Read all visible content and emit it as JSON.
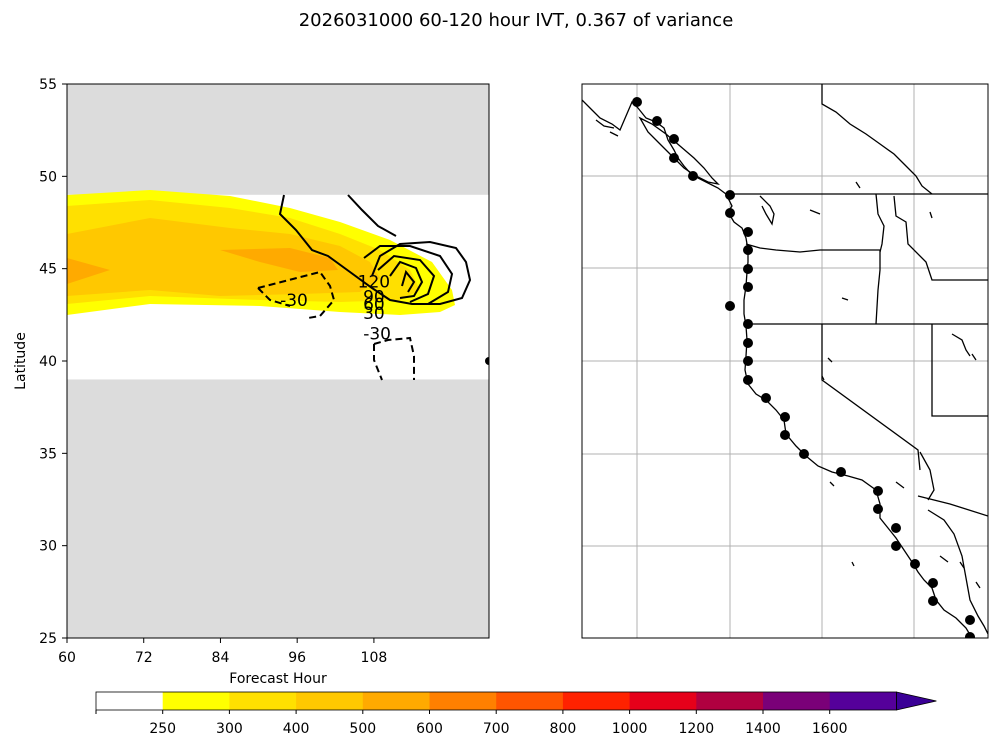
{
  "title": "2026031000 60-120 hour IVT, 0.367 of variance",
  "chart_data": [
    {
      "type": "contour",
      "xlabel": "Forecast Hour",
      "ylabel": "Latitude",
      "xlim": [
        60,
        126
      ],
      "ylim": [
        25,
        55
      ],
      "xticks": [
        "60",
        "72",
        "84",
        "96",
        "108"
      ],
      "yticks": [
        "25",
        "30",
        "35",
        "40",
        "45",
        "50",
        "55"
      ],
      "masked_color": "#dcdcdc",
      "valid_lat_range": [
        39,
        49
      ],
      "filled_levels": [
        {
          "from": 250,
          "to": 300,
          "color": "#ffff00"
        },
        {
          "from": 300,
          "to": 400,
          "color": "#ffe000"
        },
        {
          "from": 400,
          "to": 500,
          "color": "#ffc800"
        },
        {
          "from": 500,
          "to": 600,
          "color": "#ffaa00"
        }
      ],
      "contour_labels": [
        {
          "text": "-30",
          "x": 95.5,
          "y": 43.3
        },
        {
          "text": "-30",
          "x": 108.5,
          "y": 41.5
        },
        {
          "text": "120",
          "x": 108,
          "y": 44.3
        },
        {
          "text": "90",
          "x": 108,
          "y": 43.5
        },
        {
          "text": "60",
          "x": 108,
          "y": 43.1
        },
        {
          "text": "30",
          "x": 108,
          "y": 42.6
        }
      ]
    },
    {
      "type": "map",
      "region": "US West Coast",
      "gridlines": true,
      "marker_color": "#000000",
      "markers_lat": [
        54,
        52,
        51,
        50,
        49,
        48,
        47,
        46,
        45,
        44,
        43,
        42,
        41,
        40,
        39,
        38,
        37,
        36,
        35,
        34,
        33,
        32,
        31,
        30,
        29,
        28,
        27,
        26,
        25
      ]
    }
  ],
  "colorbar": {
    "labels": [
      "250",
      "300",
      "400",
      "500",
      "600",
      "700",
      "800",
      "1000",
      "1200",
      "1400",
      "1600"
    ],
    "colors": [
      "#ffffff",
      "#ffff00",
      "#ffe000",
      "#ffc800",
      "#ffaa00",
      "#ff8000",
      "#ff5500",
      "#ff2200",
      "#e6001a",
      "#b00040",
      "#7a0078",
      "#55009a",
      "#3a0096"
    ]
  }
}
